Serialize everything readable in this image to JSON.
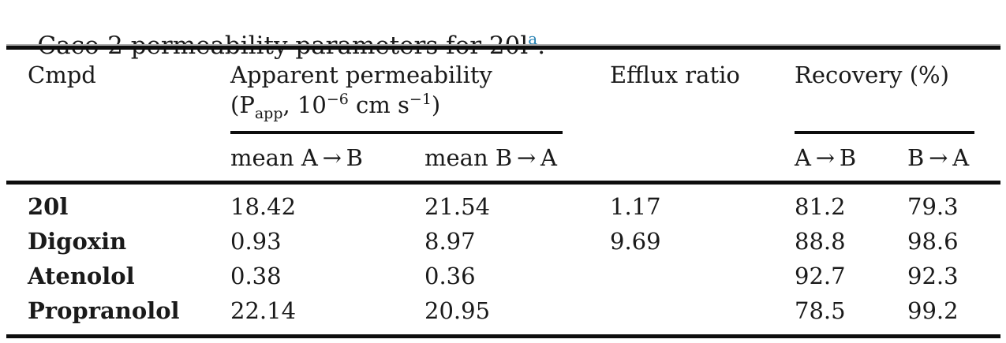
{
  "caption": {
    "text": "Caco-2 permeability parameters for 20l",
    "footnote_marker": "a",
    "period": "."
  },
  "colors": {
    "footnote_blue": "#2480b2",
    "text": "#1a1a1a",
    "rule_black": "#0d0d0d",
    "hairline_gray": "#a8a8a8"
  },
  "table": {
    "header": {
      "cmpd": "Cmpd",
      "apparent_permeability_line1": "Apparent permeability",
      "papp_units": {
        "open": "(P",
        "sub": "app",
        "comma_ten": ", 10",
        "exp1": "−6",
        "unit_cm": " cm s",
        "exp2": "−1",
        "close": ")"
      },
      "efflux_ratio": "Efflux ratio",
      "recovery": "Recovery (%)",
      "sub_mean_a_to_b": "mean A → B",
      "sub_mean_b_to_a": "mean B → A",
      "sub_a_to_b": "A → B",
      "sub_b_to_a": "B → A"
    },
    "rows": [
      {
        "cmpd": "20l",
        "mean_a_to_b": "18.42",
        "mean_b_to_a": "21.54",
        "efflux_ratio": "1.17",
        "recovery_a_to_b": "81.2",
        "recovery_b_to_a": "79.3"
      },
      {
        "cmpd": "Digoxin",
        "mean_a_to_b": "0.93",
        "mean_b_to_a": "8.97",
        "efflux_ratio": "9.69",
        "recovery_a_to_b": "88.8",
        "recovery_b_to_a": "98.6"
      },
      {
        "cmpd": "Atenolol",
        "mean_a_to_b": "0.38",
        "mean_b_to_a": "0.36",
        "efflux_ratio": "",
        "recovery_a_to_b": "92.7",
        "recovery_b_to_a": "92.3"
      },
      {
        "cmpd": "Propranolol",
        "mean_a_to_b": "22.14",
        "mean_b_to_a": "20.95",
        "efflux_ratio": "",
        "recovery_a_to_b": "78.5",
        "recovery_b_to_a": "99.2"
      }
    ]
  }
}
